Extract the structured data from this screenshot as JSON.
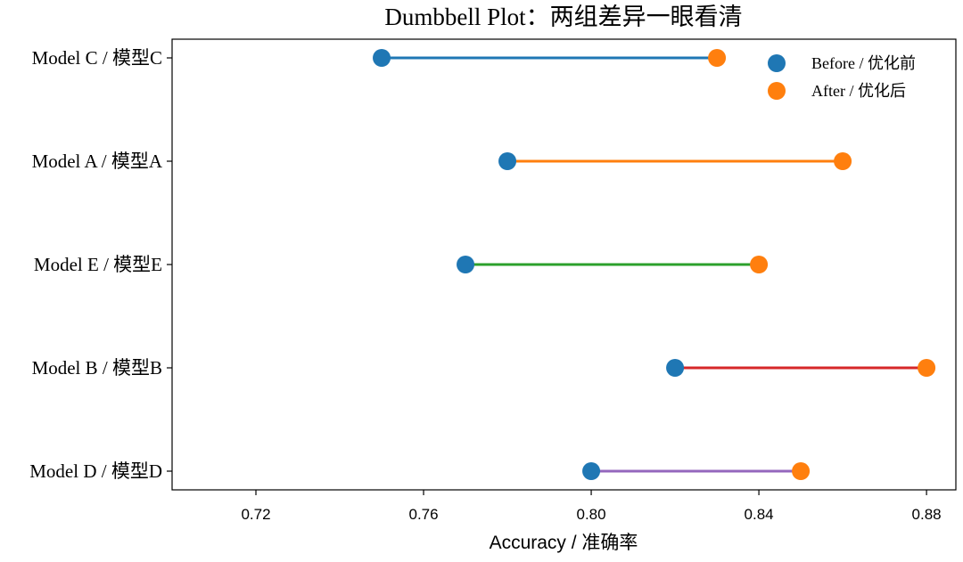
{
  "chart_data": {
    "type": "dumbbell",
    "title": "Dumbbell Plot：两组差异一眼看清",
    "xlabel": "Accuracy / 准确率",
    "ylabel": "",
    "xlim": [
      0.7,
      0.887
    ],
    "xticks": [
      0.72,
      0.76,
      0.8,
      0.84,
      0.88
    ],
    "xtick_labels": [
      "0.72",
      "0.76",
      "0.80",
      "0.84",
      "0.88"
    ],
    "categories": [
      "Model C / 模型C",
      "Model A / 模型A",
      "Model E / 模型E",
      "Model B / 模型B",
      "Model D / 模型D"
    ],
    "series": [
      {
        "name": "Before / 优化前",
        "color": "#1f77b4",
        "values": [
          0.75,
          0.78,
          0.77,
          0.82,
          0.8
        ]
      },
      {
        "name": "After / 优化后",
        "color": "#ff7f0e",
        "values": [
          0.83,
          0.86,
          0.84,
          0.88,
          0.85
        ]
      }
    ],
    "connector_colors": [
      "#1f77b4",
      "#ff7f0e",
      "#2ca02c",
      "#d62728",
      "#9467bd"
    ],
    "grid": false,
    "legend_position": "top-right"
  }
}
